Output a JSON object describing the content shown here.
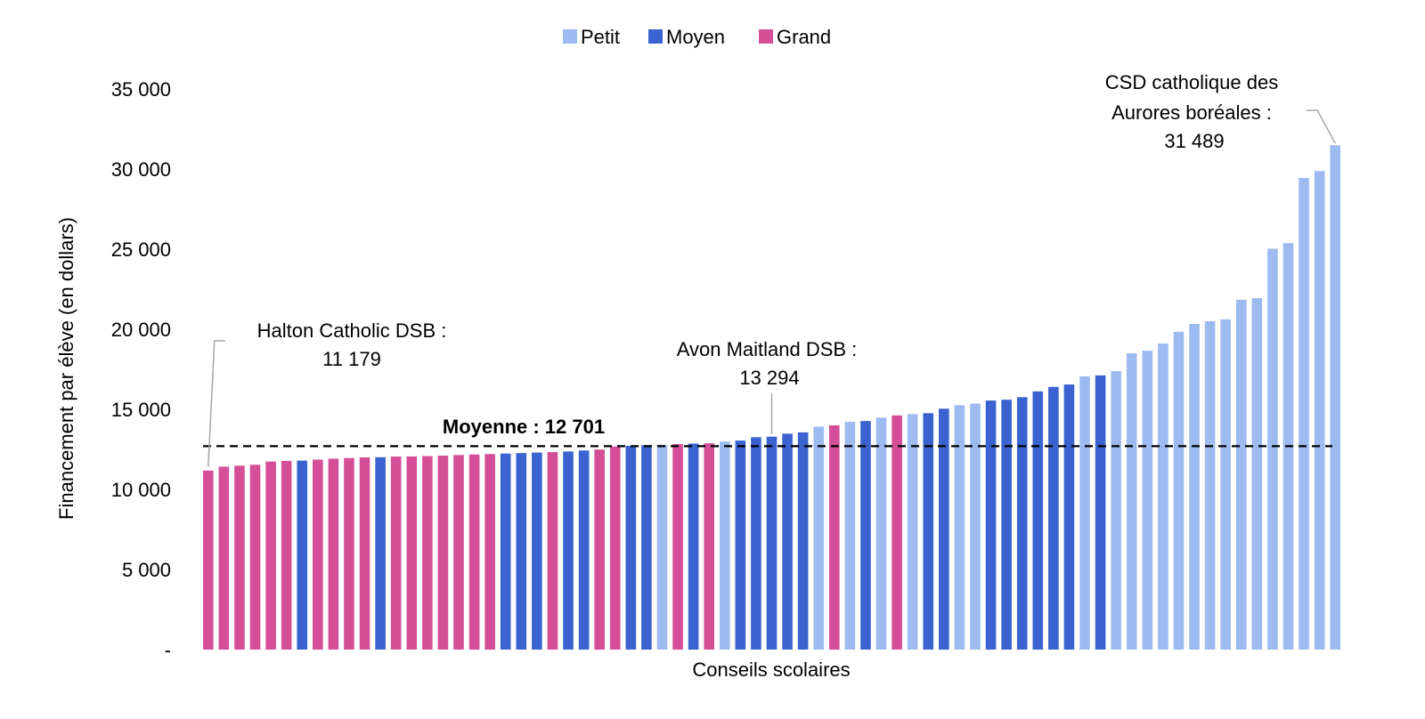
{
  "chart_data": {
    "type": "bar",
    "title": "",
    "xlabel": "Conseils scolaires",
    "ylabel": "Financement par élève (en dollars)",
    "ylim": [
      0,
      35000
    ],
    "yticks": [
      0,
      5000,
      10000,
      15000,
      20000,
      25000,
      30000,
      35000
    ],
    "ytick_labels": [
      "-",
      "5 000",
      "10 000",
      "15 000",
      "20 000",
      "25 000",
      "30 000",
      "35 000"
    ],
    "grid": false,
    "legend_position": "top-center",
    "legend": [
      {
        "key": "petit",
        "label": "Petit",
        "color": "#9dbbf0"
      },
      {
        "key": "moyen",
        "label": "Moyen",
        "color": "#3a63d0"
      },
      {
        "key": "grand",
        "label": "Grand",
        "color": "#d44f98"
      }
    ],
    "values": [
      11179,
      11420,
      11480,
      11540,
      11740,
      11780,
      11800,
      11860,
      11920,
      11960,
      12000,
      12010,
      12050,
      12060,
      12080,
      12110,
      12150,
      12180,
      12210,
      12240,
      12270,
      12300,
      12330,
      12370,
      12430,
      12490,
      12680,
      12720,
      12760,
      12780,
      12830,
      12860,
      12880,
      12990,
      13050,
      13260,
      13294,
      13480,
      13560,
      13920,
      14000,
      14220,
      14270,
      14480,
      14620,
      14700,
      14760,
      15040,
      15260,
      15360,
      15550,
      15600,
      15760,
      16120,
      16400,
      16550,
      17060,
      17120,
      17380,
      18500,
      18660,
      19110,
      19840,
      20330,
      20500,
      20620,
      21840,
      21940,
      25030,
      25380,
      29450,
      29880,
      31489
    ],
    "categories_size": [
      "grand",
      "grand",
      "grand",
      "grand",
      "grand",
      "grand",
      "moyen",
      "grand",
      "grand",
      "grand",
      "grand",
      "moyen",
      "grand",
      "grand",
      "grand",
      "grand",
      "grand",
      "grand",
      "grand",
      "moyen",
      "moyen",
      "moyen",
      "grand",
      "moyen",
      "moyen",
      "grand",
      "grand",
      "moyen",
      "moyen",
      "petit",
      "grand",
      "moyen",
      "grand",
      "petit",
      "moyen",
      "moyen",
      "moyen",
      "moyen",
      "moyen",
      "petit",
      "grand",
      "petit",
      "moyen",
      "petit",
      "grand",
      "petit",
      "moyen",
      "moyen",
      "petit",
      "petit",
      "moyen",
      "moyen",
      "moyen",
      "moyen",
      "moyen",
      "moyen",
      "petit",
      "moyen",
      "petit",
      "petit",
      "petit",
      "petit",
      "petit",
      "petit",
      "petit",
      "petit",
      "petit",
      "petit",
      "petit",
      "petit",
      "petit",
      "petit",
      "petit"
    ],
    "mean": {
      "value": 12701,
      "label": "Moyenne : 12 701"
    },
    "annotations": [
      {
        "index": 0,
        "line1": "Halton Catholic DSB :",
        "line2": "11 179"
      },
      {
        "index": 36,
        "line1": "Avon Maitland DSB :",
        "line2": "13 294"
      },
      {
        "index": 72,
        "line1": "CSD catholique des",
        "line2": "Aurores boréales :",
        "line3": "31 489"
      }
    ]
  }
}
